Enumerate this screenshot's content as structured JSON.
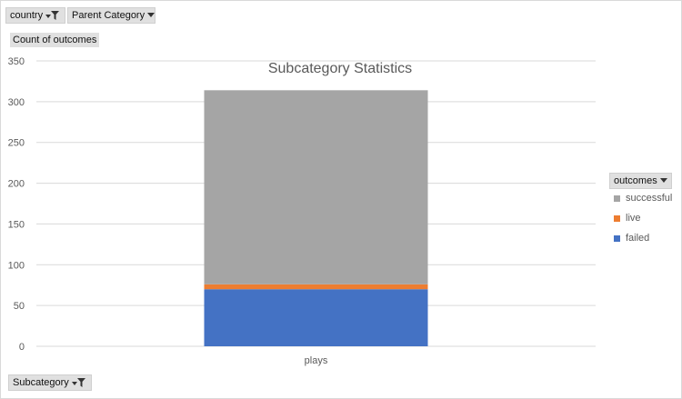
{
  "filters": {
    "country": "country",
    "parent_category": "Parent Category",
    "value_field": "Count of outcomes",
    "axis_field": "Subcategory",
    "legend_field": "outcomes"
  },
  "icons": {
    "filter": "filter-funnel-icon",
    "dropdown": "dropdown-arrow-icon"
  },
  "chart_data": {
    "type": "bar",
    "stacked": true,
    "title": "Subcategory Statistics",
    "categories": [
      "plays"
    ],
    "series": [
      {
        "name": "failed",
        "values": [
          70
        ],
        "color": "#4472c4"
      },
      {
        "name": "live",
        "values": [
          6
        ],
        "color": "#ed7d31"
      },
      {
        "name": "successful",
        "values": [
          238
        ],
        "color": "#a5a5a5"
      }
    ],
    "ylim": [
      0,
      350
    ],
    "yticks": [
      0,
      50,
      100,
      150,
      200,
      250,
      300,
      350
    ],
    "grid": true,
    "legend_position": "right"
  }
}
